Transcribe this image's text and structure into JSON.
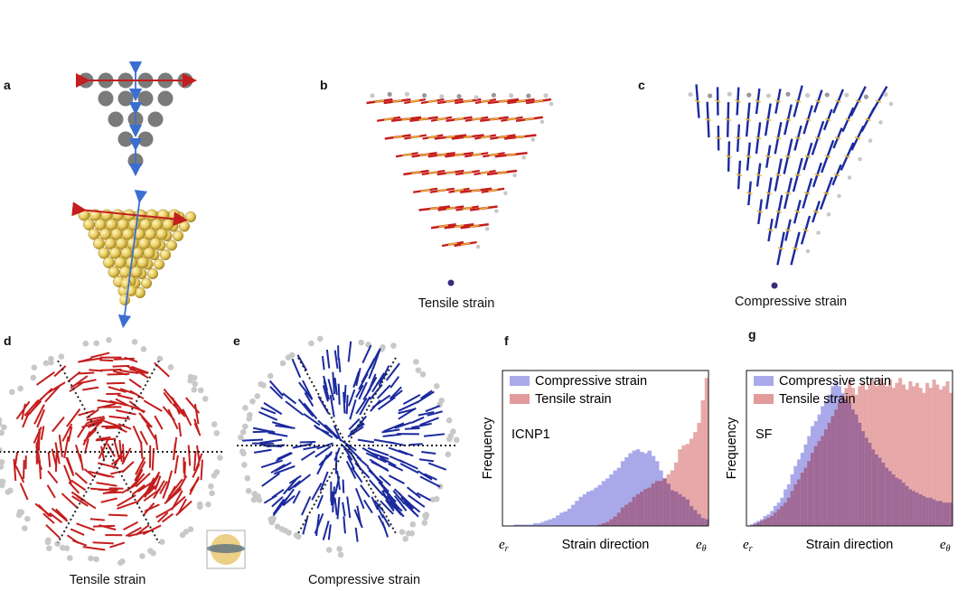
{
  "panels": {
    "a": "a",
    "b": "b",
    "c": "c",
    "d": "d",
    "e": "e",
    "f": "f",
    "g": "g"
  },
  "captions": {
    "b": "Tensile strain",
    "c": "Compressive strain",
    "d": "Tensile strain",
    "e": "Compressive strain"
  },
  "colors": {
    "tensile": "#c41e1e",
    "compressive": "#1b2a9e",
    "yellow_tick": "#e8b830",
    "atom_grey": "#7a7a7a",
    "light_grey": "#c8c8c8",
    "hist_blue": "#a9a9ea",
    "hist_red": "#e39a9a",
    "hist_overlap": "#8c5a92"
  },
  "chart_data": [
    {
      "type": "bar",
      "panel": "f",
      "annotation": "ICNP1",
      "ylabel": "Frequency",
      "xlabel": "Strain direction",
      "x_tick_left": "e",
      "x_tick_left_sub": "r",
      "x_tick_right": "e",
      "x_tick_right_sub": "θ",
      "series": [
        {
          "name": "Compressive strain",
          "values": [
            0,
            0,
            0,
            1,
            1,
            1,
            1,
            1,
            2,
            2,
            3,
            4,
            5,
            6,
            8,
            10,
            11,
            13,
            16,
            19,
            22,
            24,
            26,
            27,
            29,
            31,
            34,
            36,
            39,
            42,
            44,
            49,
            52,
            55,
            57,
            58,
            56,
            55,
            57,
            53,
            49,
            42,
            36,
            32,
            27,
            26,
            24,
            22,
            20,
            15,
            12,
            9,
            6,
            5
          ]
        },
        {
          "name": "Tensile strain",
          "values": [
            0,
            0,
            0,
            0,
            0,
            0,
            0,
            0,
            0,
            0,
            0,
            0,
            0,
            0,
            0,
            0,
            0,
            0,
            0,
            0,
            0,
            0,
            0,
            0,
            0,
            1,
            2,
            3,
            5,
            7,
            10,
            14,
            16,
            18,
            22,
            24,
            26,
            28,
            29,
            32,
            34,
            34,
            36,
            39,
            42,
            48,
            58,
            61,
            62,
            66,
            71,
            78,
            95,
            112
          ]
        }
      ]
    },
    {
      "type": "bar",
      "panel": "g",
      "annotation": "SF",
      "ylabel": "Frequency",
      "xlabel": "Strain direction",
      "x_tick_left": "e",
      "x_tick_left_sub": "r",
      "x_tick_right": "e",
      "x_tick_right_sub": "θ",
      "series": [
        {
          "name": "Compressive strain",
          "values": [
            0,
            1,
            2,
            3,
            4,
            6,
            7,
            9,
            12,
            14,
            17,
            22,
            25,
            31,
            36,
            40,
            44,
            49,
            54,
            60,
            63,
            67,
            72,
            75,
            79,
            84,
            87,
            84,
            80,
            76,
            74,
            70,
            67,
            62,
            57,
            53,
            50,
            46,
            43,
            41,
            38,
            35,
            33,
            31,
            29,
            28,
            26,
            24,
            22,
            21,
            20,
            19,
            18,
            17,
            17,
            16,
            15,
            15,
            14,
            14,
            14
          ]
        },
        {
          "name": "Tensile strain",
          "values": [
            0,
            0,
            1,
            2,
            3,
            4,
            5,
            6,
            8,
            10,
            12,
            14,
            17,
            21,
            25,
            28,
            32,
            35,
            39,
            44,
            48,
            51,
            54,
            58,
            62,
            66,
            70,
            74,
            78,
            83,
            87,
            83,
            79,
            84,
            86,
            82,
            85,
            88,
            84,
            89,
            86,
            84,
            88,
            83,
            86,
            89,
            85,
            82,
            87,
            84,
            86,
            83,
            80,
            86,
            83,
            88,
            85,
            82,
            84,
            87,
            80
          ]
        }
      ]
    }
  ]
}
